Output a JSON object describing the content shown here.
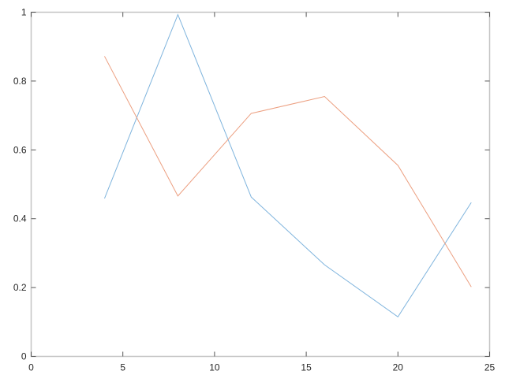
{
  "chart_data": {
    "type": "line",
    "title": "",
    "xlabel": "",
    "ylabel": "",
    "xlim": [
      0,
      25
    ],
    "ylim": [
      0,
      1
    ],
    "xticks": [
      "0",
      "5",
      "10",
      "15",
      "20",
      "25"
    ],
    "yticks": [
      "0",
      "0.2",
      "0.4",
      "0.6",
      "0.8",
      "1"
    ],
    "grid": false,
    "x": [
      4,
      8,
      12,
      16,
      20,
      24
    ],
    "series": [
      {
        "color": "#7fb4dd",
        "values": [
          0.459,
          0.993,
          0.463,
          0.266,
          0.115,
          0.447
        ]
      },
      {
        "color": "#ec9f80",
        "values": [
          0.872,
          0.466,
          0.706,
          0.755,
          0.555,
          0.202
        ]
      }
    ]
  }
}
